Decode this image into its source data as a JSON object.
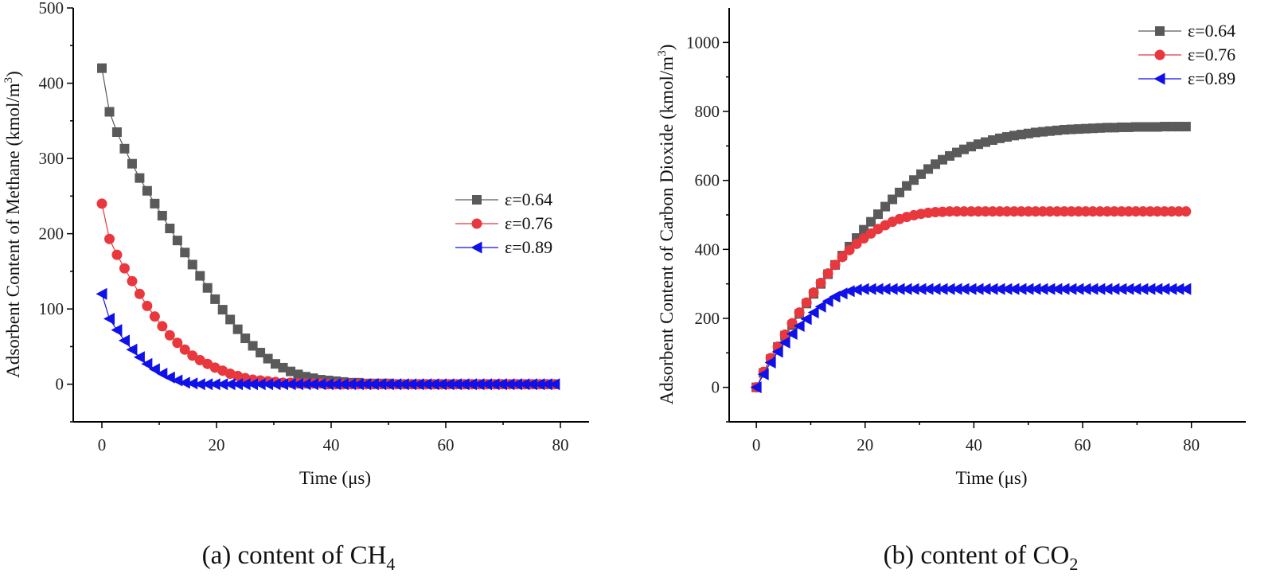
{
  "chart_data": [
    {
      "type": "line",
      "caption": {
        "prefix": "(a) content of CH",
        "sub": "4"
      },
      "xlabel": "Time (μs)",
      "ylabel": {
        "main": "Adsorbent Content of Methane (kmol/m",
        "sup": "3",
        "close": ")"
      },
      "xlim": [
        -5,
        85
      ],
      "ylim": [
        -50,
        500
      ],
      "xticks": [
        0,
        20,
        40,
        60,
        80
      ],
      "yticks": [
        0,
        100,
        200,
        300,
        400,
        500
      ],
      "legend_position": "center-right",
      "x": [
        0,
        1.32,
        2.63,
        3.95,
        5.27,
        6.58,
        7.9,
        9.22,
        10.53,
        11.85,
        13.17,
        14.48,
        15.8,
        17.12,
        18.43,
        19.75,
        21.07,
        22.38,
        23.7,
        25.02,
        26.33,
        27.65,
        28.97,
        30.28,
        31.6,
        32.92,
        34.23,
        35.55,
        36.87,
        38.18,
        39.5,
        40.82,
        42.13,
        43.45,
        44.77,
        46.08,
        47.4,
        48.72,
        50.03,
        51.35,
        52.67,
        53.98,
        55.3,
        56.62,
        57.93,
        59.25,
        60.57,
        61.88,
        63.2,
        64.52,
        65.83,
        67.15,
        68.47,
        69.78,
        71.1,
        72.42,
        73.73,
        75.05,
        76.37,
        77.68,
        79
      ],
      "series": [
        {
          "name": "ε=0.64",
          "color": "#5a5a5a",
          "marker": "square",
          "values": [
            420,
            362,
            335,
            313,
            293,
            274,
            257,
            240,
            224,
            207,
            191,
            175,
            159,
            144,
            128,
            113,
            99,
            86,
            73,
            61,
            51,
            42,
            34,
            27,
            22,
            17,
            13,
            10,
            8,
            6,
            5,
            4,
            3,
            2,
            2,
            1,
            1,
            1,
            1,
            0,
            0,
            0,
            0,
            0,
            0,
            0,
            0,
            0,
            0,
            0,
            0,
            0,
            0,
            0,
            0,
            0,
            0,
            0,
            0,
            0,
            0
          ]
        },
        {
          "name": "ε=0.76",
          "color": "#e8383d",
          "marker": "circle",
          "values": [
            240,
            193,
            172,
            154,
            137,
            120,
            104,
            90,
            77,
            65,
            55,
            46,
            38,
            32,
            27,
            22,
            18,
            14,
            11,
            8,
            6,
            5,
            4,
            3,
            2,
            2,
            1,
            1,
            1,
            1,
            0,
            0,
            0,
            0,
            0,
            0,
            0,
            0,
            0,
            0,
            0,
            0,
            0,
            0,
            0,
            0,
            0,
            0,
            0,
            0,
            0,
            0,
            0,
            0,
            0,
            0,
            0,
            0,
            0,
            0,
            0
          ]
        },
        {
          "name": "ε=0.89",
          "color": "#1010e8",
          "marker": "triangle-left",
          "values": [
            120,
            87,
            72,
            58,
            46,
            36,
            27,
            20,
            14,
            9,
            5,
            2,
            1,
            0,
            0,
            0,
            0,
            0,
            0,
            0,
            0,
            0,
            0,
            0,
            0,
            0,
            0,
            0,
            0,
            0,
            0,
            0,
            0,
            0,
            0,
            0,
            0,
            0,
            0,
            0,
            0,
            0,
            0,
            0,
            0,
            0,
            0,
            0,
            0,
            0,
            0,
            0,
            0,
            0,
            0,
            0,
            0,
            0,
            0,
            0,
            0
          ]
        }
      ]
    },
    {
      "type": "line",
      "caption": {
        "prefix": "(b) content of CO",
        "sub": "2"
      },
      "xlabel": "Time (μs)",
      "ylabel": {
        "main": "Adsorbent Content of Carbon Dioxide (kmol/m",
        "sup": "3",
        "close": ")"
      },
      "xlim": [
        -5,
        90
      ],
      "ylim": [
        -100,
        1100
      ],
      "xticks": [
        0,
        20,
        40,
        60,
        80
      ],
      "yticks": [
        0,
        200,
        400,
        600,
        800,
        1000
      ],
      "legend_position": "top-right",
      "x": [
        0,
        1.32,
        2.63,
        3.95,
        5.27,
        6.58,
        7.9,
        9.22,
        10.53,
        11.85,
        13.17,
        14.48,
        15.8,
        17.12,
        18.43,
        19.75,
        21.07,
        22.38,
        23.7,
        25.02,
        26.33,
        27.65,
        28.97,
        30.28,
        31.6,
        32.92,
        34.23,
        35.55,
        36.87,
        38.18,
        39.5,
        40.82,
        42.13,
        43.45,
        44.77,
        46.08,
        47.4,
        48.72,
        50.03,
        51.35,
        52.67,
        53.98,
        55.3,
        56.62,
        57.93,
        59.25,
        60.57,
        61.88,
        63.2,
        64.52,
        65.83,
        67.15,
        68.47,
        69.78,
        71.1,
        72.42,
        73.73,
        75.05,
        76.37,
        77.68,
        79
      ],
      "series": [
        {
          "name": "ε=0.64",
          "color": "#5a5a5a",
          "marker": "square",
          "values": [
            0,
            42,
            82,
            117,
            150,
            180,
            213,
            243,
            271,
            300,
            328,
            355,
            382,
            408,
            433,
            457,
            480,
            502,
            524,
            545,
            565,
            584,
            601,
            618,
            633,
            647,
            660,
            671,
            681,
            690,
            698,
            705,
            711,
            717,
            722,
            726,
            730,
            733,
            736,
            739,
            741,
            743,
            745,
            747,
            748,
            749,
            750,
            751,
            752,
            753,
            753,
            754,
            754,
            755,
            755,
            755,
            755,
            756,
            756,
            756,
            756
          ]
        },
        {
          "name": "ε=0.76",
          "color": "#e8383d",
          "marker": "circle",
          "values": [
            0,
            45,
            85,
            118,
            153,
            186,
            217,
            246,
            275,
            303,
            330,
            355,
            378,
            398,
            416,
            432,
            446,
            459,
            470,
            480,
            488,
            494,
            499,
            503,
            506,
            508,
            509,
            510,
            510,
            510,
            510,
            510,
            510,
            510,
            510,
            510,
            510,
            510,
            510,
            510,
            510,
            510,
            510,
            510,
            510,
            510,
            510,
            510,
            510,
            510,
            510,
            510,
            510,
            510,
            510,
            510,
            510,
            510,
            510,
            510,
            510
          ]
        },
        {
          "name": "ε=0.89",
          "color": "#1010e8",
          "marker": "triangle-left",
          "values": [
            0,
            38,
            72,
            103,
            130,
            155,
            178,
            198,
            217,
            234,
            250,
            263,
            272,
            279,
            283,
            285,
            285,
            285,
            285,
            285,
            285,
            285,
            285,
            285,
            285,
            285,
            285,
            285,
            285,
            285,
            285,
            285,
            285,
            285,
            285,
            285,
            285,
            285,
            285,
            285,
            285,
            285,
            285,
            285,
            285,
            285,
            285,
            285,
            285,
            285,
            285,
            285,
            285,
            285,
            285,
            285,
            285,
            285,
            285,
            285,
            285
          ]
        }
      ]
    }
  ]
}
